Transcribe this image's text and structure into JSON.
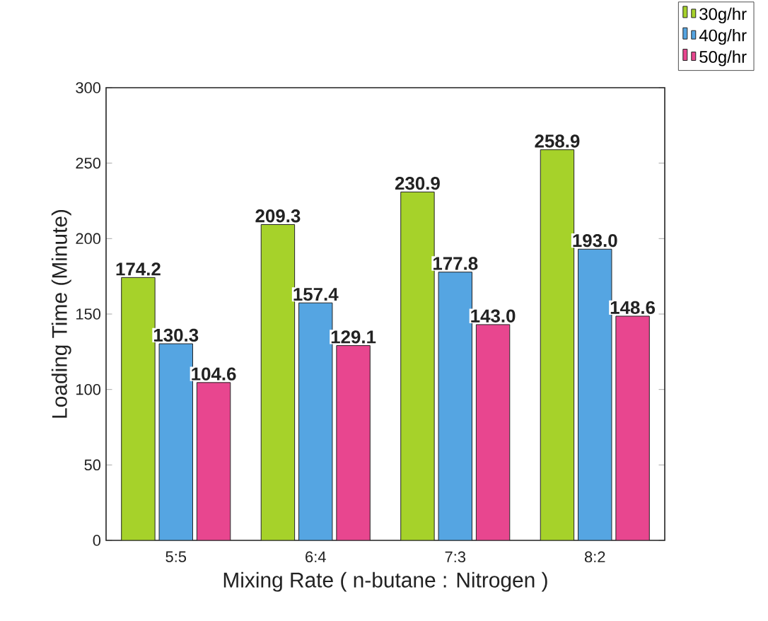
{
  "chart_data": {
    "type": "bar",
    "xlabel": "Mixing Rate ( n-butane : Nitrogen )",
    "ylabel": "Loading Time (Minute)",
    "categories": [
      "5:5",
      "6:4",
      "7:3",
      "8:2"
    ],
    "series": [
      {
        "name": "30g/hr",
        "color": "#a6d22a",
        "values": [
          174.2,
          209.3,
          230.9,
          258.9
        ],
        "value_labels": [
          "174.2",
          "209.3",
          "230.9",
          "258.9"
        ]
      },
      {
        "name": "40g/hr",
        "color": "#55a5e2",
        "values": [
          130.3,
          157.4,
          177.8,
          193.0
        ],
        "value_labels": [
          "130.3",
          "157.4",
          "177.8",
          "193.0"
        ]
      },
      {
        "name": "50g/hr",
        "color": "#e8468f",
        "values": [
          104.6,
          129.1,
          143.0,
          148.6
        ],
        "value_labels": [
          "104.6",
          "129.1",
          "143.0",
          "148.6"
        ]
      }
    ],
    "ylim": [
      0,
      300
    ],
    "yticks": [
      0,
      50,
      100,
      150,
      200,
      250,
      300
    ],
    "legend": "top right",
    "grid": false
  }
}
